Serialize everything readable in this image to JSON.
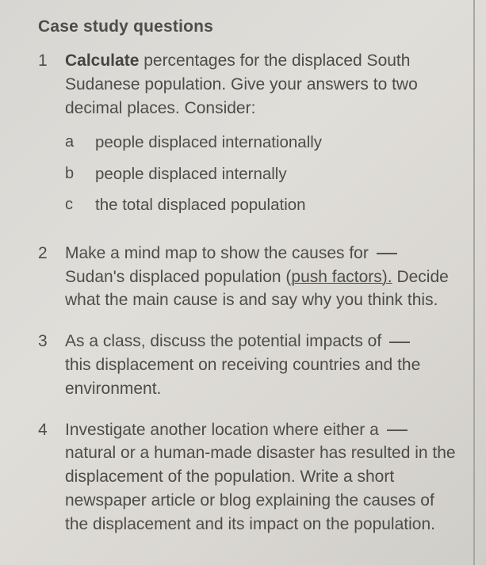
{
  "heading": "Case study questions",
  "q1": {
    "num": "1",
    "bold": "Calculate",
    "rest": " percentages for the displaced South Sudanese population. Give your answers to two decimal places. Consider:",
    "subs": {
      "a": {
        "letter": "a",
        "text": "people displaced internationally"
      },
      "b": {
        "letter": "b",
        "text": "people displaced internally"
      },
      "c": {
        "letter": "c",
        "text": "the total displaced population"
      }
    }
  },
  "q2": {
    "num": "2",
    "pre": "Make a mind map to show the causes for ",
    "mid": "Sudan's displaced population (",
    "underlined": "push factors).",
    "post": " Decide what the main cause is and say why you think this."
  },
  "q3": {
    "num": "3",
    "pre": "As a class, discuss the potential impacts of ",
    "post": "this displacement on receiving countries and the environment."
  },
  "q4": {
    "num": "4",
    "pre": "Investigate another location where either a ",
    "post": "natural or a human-made disaster has resulted in the displacement of the population. Write a short newspaper article or blog explaining the causes of the displacement and its impact on the population."
  },
  "colors": {
    "text": "#4a4a48",
    "bg_light": "#e0ded9",
    "bg_dark": "#cfcdc8",
    "border": "#a8a6a2"
  }
}
